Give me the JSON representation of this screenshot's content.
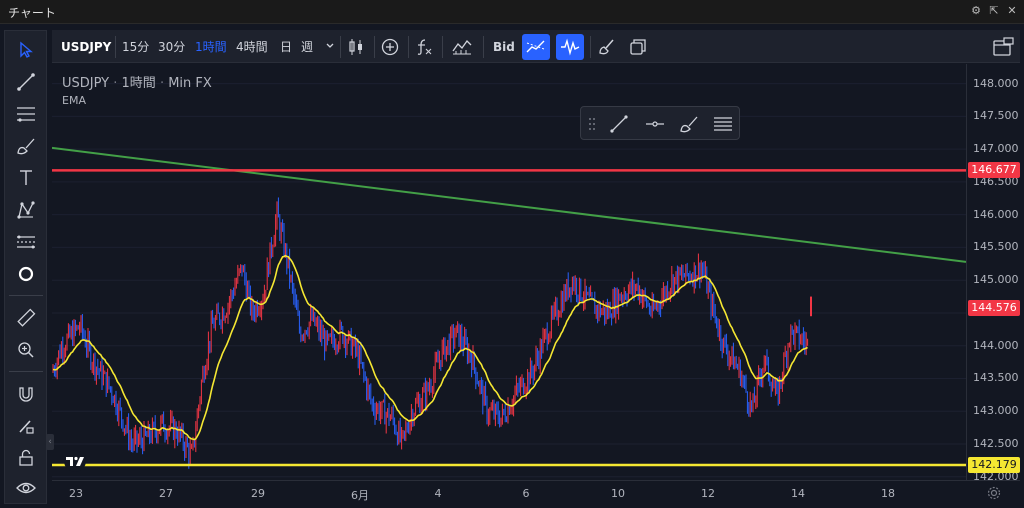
{
  "window": {
    "title": "チャート"
  },
  "toolbar": {
    "symbol": "USDJPY",
    "intervals": [
      "15分",
      "30分",
      "1時間",
      "4時間",
      "日",
      "週"
    ],
    "active_interval": "1時間",
    "price_type": "Bid"
  },
  "legend": {
    "symbol": "USDJPY",
    "interval": "1時間",
    "source": "Min FX",
    "indicator": "EMA"
  },
  "price_axis": {
    "ticks": [
      "148.000",
      "147.500",
      "147.000",
      "146.500",
      "146.000",
      "145.500",
      "145.000",
      "144.500",
      "144.000",
      "143.500",
      "143.000",
      "142.500",
      "142.000"
    ],
    "badges": {
      "red_line": "146.677",
      "last_price": "144.576",
      "yellow_line": "142.179"
    }
  },
  "time_axis": {
    "ticks": [
      "23",
      "27",
      "29",
      "6月",
      "4",
      "6",
      "10",
      "12",
      "14",
      "18"
    ]
  },
  "chart_data": {
    "type": "candlestick",
    "ylim": [
      141.95,
      148.3
    ],
    "horizontal_lines": [
      {
        "price": 146.677,
        "color": "#f23645"
      },
      {
        "price": 142.179,
        "color": "#f5e732"
      }
    ],
    "trend_line": {
      "from_price": 147.02,
      "to_price": 145.28,
      "color": "#43a047"
    },
    "last_price": 144.576,
    "ema_color": "#f5e732",
    "up_color": "#f23645",
    "down_color": "#2962ff"
  }
}
